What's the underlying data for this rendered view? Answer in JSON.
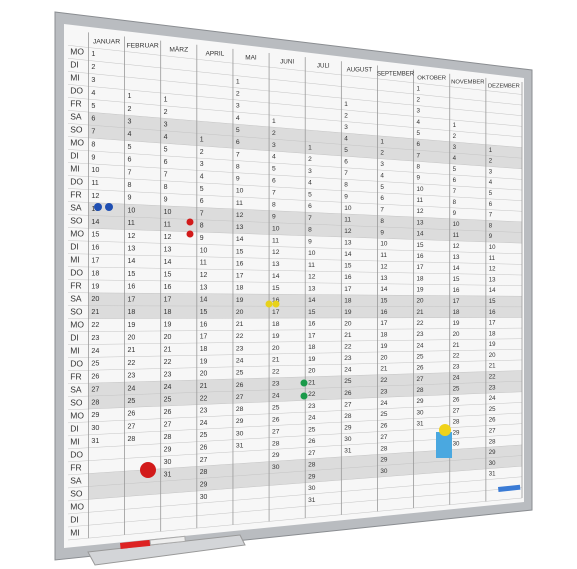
{
  "weekdays": [
    "MO",
    "DI",
    "MI",
    "DO",
    "FR",
    "SA",
    "SO",
    "MO",
    "DI",
    "MI",
    "DO",
    "FR",
    "SA",
    "SO",
    "MO",
    "DI",
    "MI",
    "DO",
    "FR",
    "SA",
    "SO",
    "MO",
    "DI",
    "MI",
    "DO",
    "FR",
    "SA",
    "SO",
    "MO",
    "DI",
    "MI",
    "DO",
    "FR",
    "SA",
    "SO",
    "MO",
    "DI",
    "MI"
  ],
  "months": [
    {
      "name": "JANUAR",
      "cells": [
        1,
        2,
        3,
        4,
        5,
        6,
        7,
        8,
        9,
        10,
        11,
        12,
        13,
        14,
        15,
        16,
        17,
        18,
        19,
        20,
        21,
        22,
        23,
        24,
        25,
        26,
        27,
        28,
        29,
        30,
        31
      ]
    },
    {
      "name": "FEBRUAR",
      "cells": [
        null,
        null,
        null,
        1,
        2,
        3,
        4,
        5,
        6,
        7,
        8,
        9,
        10,
        11,
        12,
        13,
        14,
        15,
        16,
        17,
        18,
        19,
        20,
        21,
        22,
        23,
        24,
        25,
        26,
        27,
        28
      ]
    },
    {
      "name": "MÄRZ",
      "cells": [
        null,
        null,
        null,
        1,
        2,
        3,
        4,
        5,
        6,
        7,
        8,
        9,
        10,
        11,
        12,
        13,
        14,
        15,
        16,
        17,
        18,
        19,
        20,
        21,
        22,
        23,
        24,
        25,
        26,
        27,
        28,
        29,
        30,
        31
      ]
    },
    {
      "name": "APRIL",
      "cells": [
        null,
        null,
        null,
        null,
        null,
        null,
        1,
        2,
        3,
        4,
        5,
        6,
        7,
        8,
        9,
        10,
        11,
        12,
        13,
        14,
        15,
        16,
        17,
        18,
        19,
        20,
        21,
        22,
        23,
        24,
        25,
        26,
        27,
        28,
        29,
        30
      ]
    },
    {
      "name": "MAI",
      "cells": [
        null,
        1,
        2,
        3,
        4,
        5,
        6,
        7,
        8,
        9,
        10,
        11,
        12,
        13,
        14,
        15,
        16,
        17,
        18,
        19,
        20,
        21,
        22,
        23,
        24,
        25,
        26,
        27,
        28,
        29,
        30,
        31
      ]
    },
    {
      "name": "JUNI",
      "cells": [
        null,
        null,
        null,
        null,
        1,
        2,
        3,
        4,
        5,
        6,
        7,
        8,
        9,
        10,
        11,
        12,
        13,
        14,
        15,
        16,
        17,
        18,
        19,
        20,
        21,
        22,
        23,
        24,
        25,
        26,
        27,
        28,
        29,
        30
      ]
    },
    {
      "name": "JULI",
      "cells": [
        null,
        null,
        null,
        null,
        null,
        null,
        1,
        2,
        3,
        4,
        5,
        6,
        7,
        8,
        9,
        10,
        11,
        12,
        13,
        14,
        15,
        16,
        17,
        18,
        19,
        20,
        21,
        22,
        23,
        24,
        25,
        26,
        27,
        28,
        29,
        30,
        31
      ]
    },
    {
      "name": "AUGUST",
      "cells": [
        null,
        null,
        1,
        2,
        3,
        4,
        5,
        6,
        7,
        8,
        9,
        10,
        11,
        12,
        13,
        14,
        15,
        16,
        17,
        18,
        19,
        20,
        21,
        22,
        23,
        24,
        25,
        26,
        27,
        28,
        29,
        30,
        31
      ]
    },
    {
      "name": "SEPTEMBER",
      "cells": [
        null,
        null,
        null,
        null,
        null,
        1,
        2,
        3,
        4,
        5,
        6,
        7,
        8,
        9,
        10,
        11,
        12,
        13,
        14,
        15,
        16,
        17,
        18,
        19,
        20,
        21,
        22,
        23,
        24,
        25,
        26,
        27,
        28,
        29,
        30
      ]
    },
    {
      "name": "OKTOBER",
      "cells": [
        1,
        2,
        3,
        4,
        5,
        6,
        7,
        8,
        9,
        10,
        11,
        12,
        13,
        14,
        15,
        16,
        17,
        18,
        19,
        20,
        21,
        22,
        23,
        24,
        25,
        26,
        27,
        28,
        29,
        30,
        31
      ]
    },
    {
      "name": "NOVEMBER",
      "cells": [
        null,
        null,
        null,
        1,
        2,
        3,
        4,
        5,
        6,
        7,
        8,
        9,
        10,
        11,
        12,
        13,
        14,
        15,
        16,
        17,
        18,
        19,
        20,
        21,
        22,
        23,
        24,
        25,
        26,
        27,
        28,
        29,
        30
      ]
    },
    {
      "name": "DEZEMBER",
      "cells": [
        null,
        null,
        null,
        null,
        null,
        1,
        2,
        3,
        4,
        5,
        6,
        7,
        8,
        9,
        10,
        11,
        12,
        13,
        14,
        15,
        16,
        17,
        18,
        19,
        20,
        21,
        22,
        23,
        24,
        25,
        26,
        27,
        28,
        29,
        30,
        31
      ]
    }
  ]
}
